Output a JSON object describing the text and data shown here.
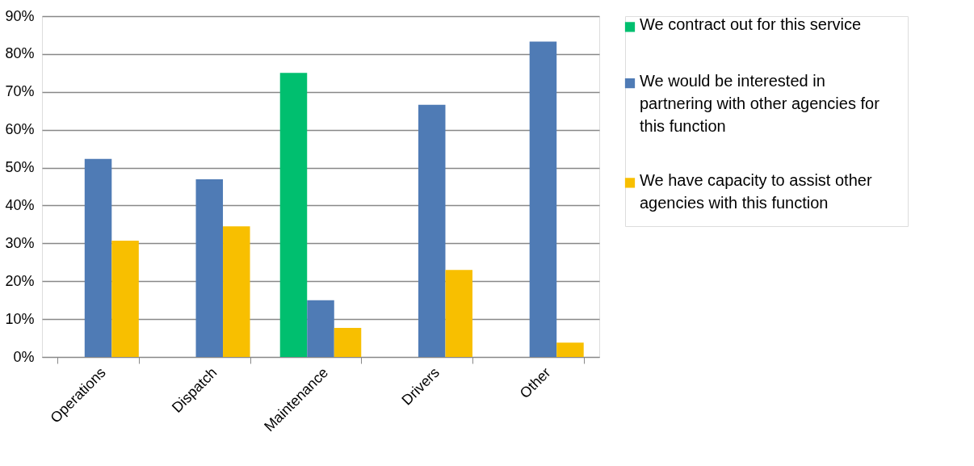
{
  "chart_data": {
    "type": "bar",
    "categories": [
      "Operations",
      "Dispatch",
      "Maintenance",
      "Drivers",
      "Other"
    ],
    "series": [
      {
        "name": "We contract out for this service",
        "color": "#00bf6f",
        "values": [
          null,
          null,
          75,
          null,
          null
        ]
      },
      {
        "name": "We would be interested in partnering with other agencies for this function",
        "color": "#4f7bb5",
        "values": [
          52.3,
          46.9,
          15,
          66.6,
          83.3
        ]
      },
      {
        "name": "We have capacity to assist other agencies with this function",
        "color": "#f8bf00",
        "values": [
          30.7,
          34.5,
          7.7,
          23,
          3.8
        ]
      }
    ],
    "ylim": [
      0,
      90
    ],
    "yticks": [
      {
        "value": 0,
        "label": "0%"
      },
      {
        "value": 10,
        "label": "10%"
      },
      {
        "value": 20,
        "label": "20%"
      },
      {
        "value": 30,
        "label": "30%"
      },
      {
        "value": 40,
        "label": "40%"
      },
      {
        "value": 50,
        "label": "50%"
      },
      {
        "value": 60,
        "label": "60%"
      },
      {
        "value": 70,
        "label": "70%"
      },
      {
        "value": 80,
        "label": "80%"
      },
      {
        "value": 90,
        "label": "90%"
      }
    ],
    "grid": "y",
    "legend": "right"
  }
}
